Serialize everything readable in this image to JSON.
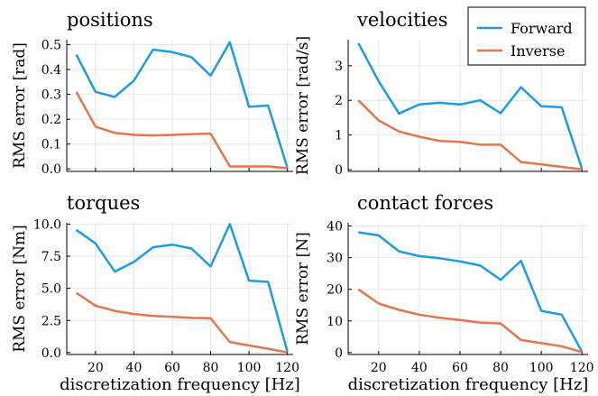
{
  "colors": {
    "forward": "#1f9be0",
    "inverse": "#e0774d",
    "grid": "#e6e6e6",
    "axis": "#000000"
  },
  "legend": {
    "placement": "top-right",
    "entries": [
      "Forward",
      "Inverse"
    ]
  },
  "x_axis_label": "discretization frequency [Hz]",
  "chart_data": [
    {
      "type": "line",
      "title": "positions",
      "ylabel": "RMS error [rad]",
      "xlabel": "",
      "x": [
        10,
        20,
        30,
        40,
        50,
        60,
        70,
        80,
        90,
        100,
        110,
        120
      ],
      "xlim": [
        5,
        123
      ],
      "xticks": [
        20,
        40,
        60,
        80,
        100,
        120
      ],
      "xtick_labels": [
        "",
        "",
        "",
        "",
        "",
        ""
      ],
      "ylim": [
        -0.01,
        0.52
      ],
      "yticks": [
        0,
        0.1,
        0.2,
        0.3,
        0.4,
        0.5
      ],
      "ytick_labels": [
        "0.0",
        "0.1",
        "0.2",
        "0.3",
        "0.4",
        "0.5"
      ],
      "grid": true,
      "series": [
        {
          "name": "Forward",
          "values": [
            0.46,
            0.31,
            0.29,
            0.355,
            0.48,
            0.47,
            0.45,
            0.375,
            0.51,
            0.25,
            0.255,
            0.005
          ]
        },
        {
          "name": "Inverse",
          "values": [
            0.31,
            0.17,
            0.145,
            0.137,
            0.135,
            0.137,
            0.14,
            0.142,
            0.01,
            0.01,
            0.01,
            0.003
          ]
        }
      ]
    },
    {
      "type": "line",
      "title": "velocities",
      "ylabel": "RMS error [rad/s]",
      "xlabel": "",
      "x": [
        10,
        20,
        30,
        40,
        50,
        60,
        70,
        80,
        90,
        100,
        110,
        120
      ],
      "xlim": [
        5,
        123
      ],
      "xticks": [
        20,
        40,
        60,
        80,
        100,
        120
      ],
      "xtick_labels": [
        "",
        "",
        "",
        "",
        "",
        ""
      ],
      "ylim": [
        -0.05,
        3.75
      ],
      "yticks": [
        0,
        1,
        2,
        3
      ],
      "ytick_labels": [
        "0",
        "1",
        "2",
        "3"
      ],
      "grid": true,
      "series": [
        {
          "name": "Forward",
          "values": [
            3.65,
            2.55,
            1.62,
            1.88,
            1.93,
            1.88,
            2.0,
            1.63,
            2.38,
            1.83,
            1.8,
            0.03
          ]
        },
        {
          "name": "Inverse",
          "values": [
            2.0,
            1.42,
            1.1,
            0.95,
            0.83,
            0.8,
            0.72,
            0.72,
            0.22,
            0.15,
            0.08,
            0.01
          ]
        }
      ]
    },
    {
      "type": "line",
      "title": "torques",
      "ylabel": "RMS error [Nm]",
      "xlabel": "discretization frequency [Hz]",
      "x": [
        10,
        20,
        30,
        40,
        50,
        60,
        70,
        80,
        90,
        100,
        110,
        120
      ],
      "xlim": [
        5,
        123
      ],
      "xticks": [
        20,
        40,
        60,
        80,
        100,
        120
      ],
      "xtick_labels": [
        "20",
        "40",
        "60",
        "80",
        "100",
        "120"
      ],
      "ylim": [
        -0.15,
        10.1
      ],
      "yticks": [
        0,
        2.5,
        5,
        7.5,
        10
      ],
      "ytick_labels": [
        "0.0",
        "2.5",
        "5.0",
        "7.5",
        "10.0"
      ],
      "grid": true,
      "series": [
        {
          "name": "Forward",
          "values": [
            9.55,
            8.5,
            6.3,
            7.05,
            8.2,
            8.4,
            8.1,
            6.7,
            10.0,
            5.6,
            5.5,
            0.08
          ]
        },
        {
          "name": "Inverse",
          "values": [
            4.65,
            3.65,
            3.25,
            3.0,
            2.85,
            2.78,
            2.7,
            2.68,
            0.82,
            0.55,
            0.3,
            0.02
          ]
        }
      ]
    },
    {
      "type": "line",
      "title": "contact forces",
      "ylabel": "RMS error [N]",
      "xlabel": "discretization frequency [Hz]",
      "x": [
        10,
        20,
        30,
        40,
        50,
        60,
        70,
        80,
        90,
        100,
        110,
        120
      ],
      "xlim": [
        5,
        123
      ],
      "xticks": [
        20,
        40,
        60,
        80,
        100,
        120
      ],
      "xtick_labels": [
        "20",
        "40",
        "60",
        "80",
        "100",
        "120"
      ],
      "ylim": [
        -0.6,
        41
      ],
      "yticks": [
        0,
        10,
        20,
        30,
        40
      ],
      "ytick_labels": [
        "0",
        "10",
        "20",
        "30",
        "40"
      ],
      "grid": true,
      "series": [
        {
          "name": "Forward",
          "values": [
            38.0,
            37.0,
            32.0,
            30.5,
            29.8,
            28.8,
            27.5,
            23.0,
            29.0,
            13.2,
            12.0,
            0.3
          ]
        },
        {
          "name": "Inverse",
          "values": [
            20.0,
            15.5,
            13.5,
            12.0,
            11.0,
            10.3,
            9.5,
            9.2,
            4.0,
            3.0,
            2.0,
            0.2
          ]
        }
      ]
    }
  ]
}
